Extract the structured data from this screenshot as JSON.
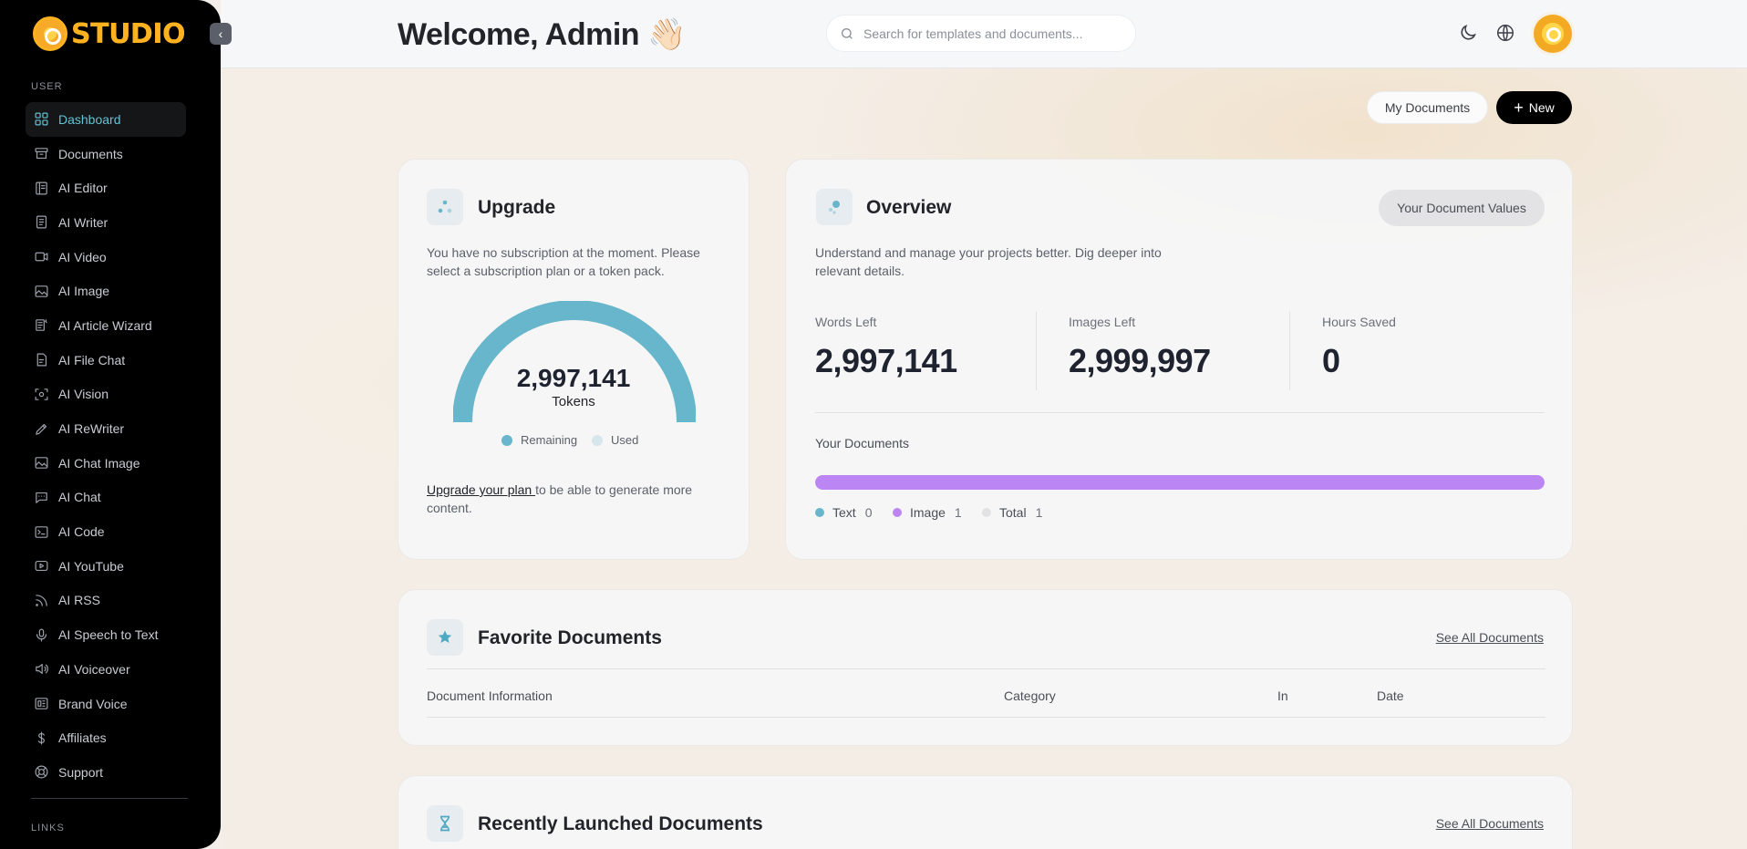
{
  "brand": {
    "logo_text": "STUDIO",
    "accent": "#63c2d4",
    "logo_color": "#ffb21f"
  },
  "sidebar": {
    "user_section": "USER",
    "links_section": "LINKS",
    "items": [
      {
        "label": "Dashboard",
        "icon": "dashboard-icon",
        "active": true
      },
      {
        "label": "Documents",
        "icon": "archive-icon"
      },
      {
        "label": "AI Editor",
        "icon": "editor-icon"
      },
      {
        "label": "AI Writer",
        "icon": "file-text-icon"
      },
      {
        "label": "AI Video",
        "icon": "video-icon"
      },
      {
        "label": "AI Image",
        "icon": "image-icon"
      },
      {
        "label": "AI Article Wizard",
        "icon": "wizard-icon"
      },
      {
        "label": "AI File Chat",
        "icon": "file-chat-icon"
      },
      {
        "label": "AI Vision",
        "icon": "scan-eye-icon"
      },
      {
        "label": "AI ReWriter",
        "icon": "pencil-icon"
      },
      {
        "label": "AI Chat Image",
        "icon": "chat-image-icon"
      },
      {
        "label": "AI Chat",
        "icon": "message-icon"
      },
      {
        "label": "AI Code",
        "icon": "terminal-icon"
      },
      {
        "label": "AI YouTube",
        "icon": "youtube-icon"
      },
      {
        "label": "AI RSS",
        "icon": "rss-icon"
      },
      {
        "label": "AI Speech to Text",
        "icon": "microphone-icon"
      },
      {
        "label": "AI Voiceover",
        "icon": "volume-icon"
      },
      {
        "label": "Brand Voice",
        "icon": "brand-icon"
      },
      {
        "label": "Affiliates",
        "icon": "dollar-icon"
      },
      {
        "label": "Support",
        "icon": "lifebuoy-icon"
      }
    ]
  },
  "header": {
    "welcome": "Welcome, Admin 👋🏻",
    "search_placeholder": "Search for templates and documents..."
  },
  "actions": {
    "my_documents": "My Documents",
    "new": "New"
  },
  "upgrade": {
    "title": "Upgrade",
    "description": "You have no subscription at the moment. Please select a subscription plan or a token pack.",
    "tokens_value": "2,997,141",
    "tokens_unit": "Tokens",
    "remaining_fraction": 0.9998,
    "legend_remaining": "Remaining",
    "legend_used": "Used",
    "link_text": "Upgrade your plan ",
    "foot_text": "to be able to generate more content.",
    "colors": {
      "remaining": "#68b6cb",
      "used": "#d6e6ec"
    }
  },
  "overview": {
    "title": "Overview",
    "button": "Your Document Values",
    "description": "Understand and manage your projects better. Dig deeper into relevant details.",
    "stats": [
      {
        "label": "Words Left",
        "value": "2,997,141"
      },
      {
        "label": "Images Left",
        "value": "2,999,997"
      },
      {
        "label": "Hours Saved",
        "value": "0"
      }
    ],
    "documents_title": "Your Documents",
    "image_fraction": 1.0,
    "legend": [
      {
        "label": "Text",
        "count": "0",
        "color": "#68b6cb"
      },
      {
        "label": "Image",
        "count": "1",
        "color": "#bb86f4"
      },
      {
        "label": "Total",
        "count": "1",
        "color": "#e2e2e4"
      }
    ]
  },
  "favorites": {
    "title": "Favorite Documents",
    "see_all": "See All Documents",
    "columns": [
      "Document Information",
      "Category",
      "In",
      "Date"
    ]
  },
  "recent": {
    "title": "Recently Launched Documents",
    "see_all": "See All Documents"
  }
}
